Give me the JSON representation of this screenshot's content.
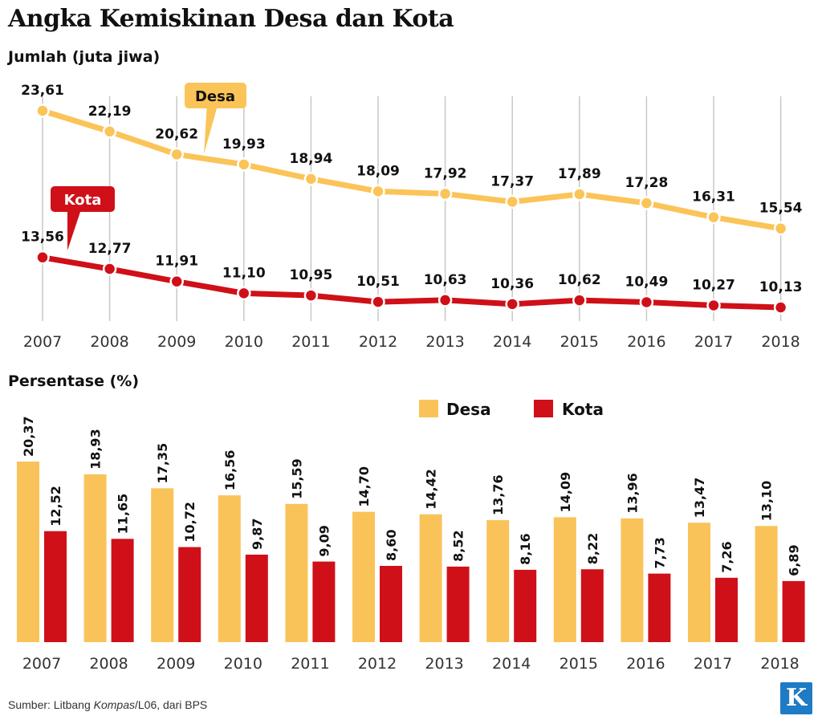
{
  "title": "Angka Kemiskinan Desa dan Kota",
  "source": {
    "prefix": "Sumber: Litbang ",
    "italic": "Kompas",
    "suffix": "/L06, dari BPS"
  },
  "logo_text": "K",
  "colors": {
    "desa": "#f9c35a",
    "kota": "#cf1018",
    "desa_line": "#fbc458"
  },
  "chart_data": [
    {
      "type": "line",
      "title": "",
      "ylabel": "Jumlah (juta jiwa)",
      "x": [
        "2007",
        "2008",
        "2009",
        "2010",
        "2011",
        "2012",
        "2013",
        "2014",
        "2015",
        "2016",
        "2017",
        "2018"
      ],
      "ylim": [
        9,
        24.5
      ],
      "series": [
        {
          "name": "Desa",
          "values": [
            23.61,
            22.19,
            20.62,
            19.93,
            18.94,
            18.09,
            17.92,
            17.37,
            17.89,
            17.28,
            16.31,
            15.54
          ],
          "labels": [
            "23,61",
            "22,19",
            "20,62",
            "19,93",
            "18,94",
            "18,09",
            "17,92",
            "17,37",
            "17,89",
            "17,28",
            "16,31",
            "15,54"
          ]
        },
        {
          "name": "Kota",
          "values": [
            13.56,
            12.77,
            11.91,
            11.1,
            10.95,
            10.51,
            10.63,
            10.36,
            10.62,
            10.49,
            10.27,
            10.13
          ],
          "labels": [
            "13,56",
            "12,77",
            "11,91",
            "11,10",
            "10,95",
            "10,51",
            "10,63",
            "10,36",
            "10,62",
            "10,49",
            "10,27",
            "10,13"
          ]
        }
      ]
    },
    {
      "type": "bar",
      "title": "",
      "ylabel": "Persentase (%)",
      "categories": [
        "2007",
        "2008",
        "2009",
        "2010",
        "2011",
        "2012",
        "2013",
        "2014",
        "2015",
        "2016",
        "2017",
        "2018"
      ],
      "ylim": [
        0,
        20.37
      ],
      "legend": [
        "Desa",
        "Kota"
      ],
      "series": [
        {
          "name": "Desa",
          "values": [
            20.37,
            18.93,
            17.35,
            16.56,
            15.59,
            14.7,
            14.42,
            13.76,
            14.09,
            13.96,
            13.47,
            13.1
          ],
          "labels": [
            "20,37",
            "18,93",
            "17,35",
            "16,56",
            "15,59",
            "14,70",
            "14,42",
            "13,76",
            "14,09",
            "13,96",
            "13,47",
            "13,10"
          ]
        },
        {
          "name": "Kota",
          "values": [
            12.52,
            11.65,
            10.72,
            9.87,
            9.09,
            8.6,
            8.52,
            8.16,
            8.22,
            7.73,
            7.26,
            6.89
          ],
          "labels": [
            "12,52",
            "11,65",
            "10,72",
            "9,87",
            "9,09",
            "8,60",
            "8,52",
            "8,16",
            "8,22",
            "7,73",
            "7,26",
            "6,89"
          ]
        }
      ]
    }
  ]
}
